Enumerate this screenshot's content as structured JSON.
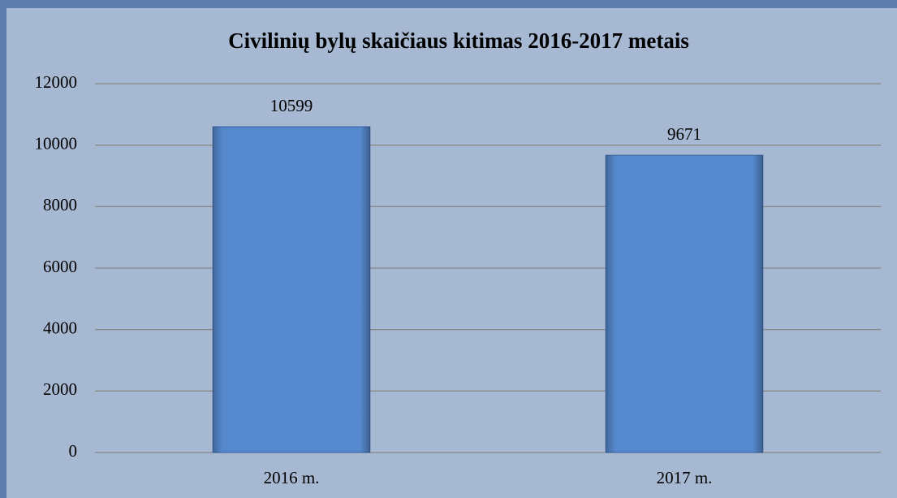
{
  "chart_data": {
    "type": "bar",
    "title": "Civilinių bylų skaičiaus kitimas 2016-2017 metais",
    "categories": [
      "2016 m.",
      "2017 m."
    ],
    "values": [
      10599,
      9671
    ],
    "color": "#5588cc",
    "ylim": [
      0,
      12000
    ],
    "yticks": [
      0,
      2000,
      4000,
      6000,
      8000,
      10000,
      12000
    ],
    "grid": true
  }
}
